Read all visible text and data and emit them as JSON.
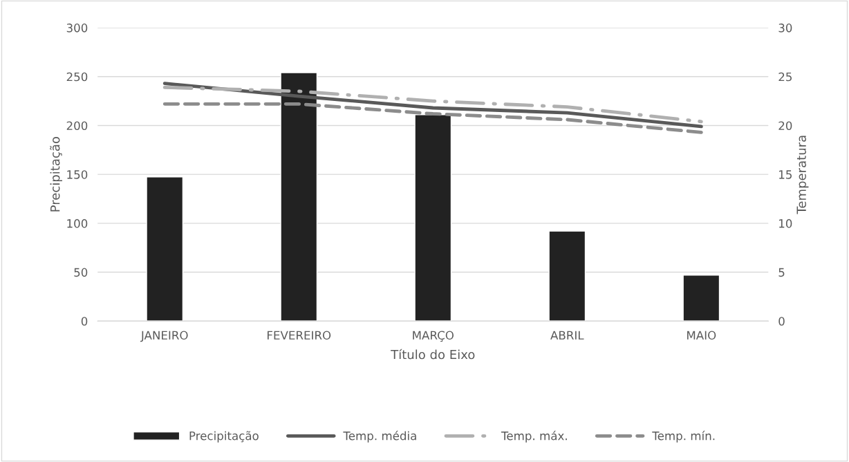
{
  "chart_data": {
    "type": "bar",
    "xlabel": "Título do Eixo",
    "ylabel": "Precipitação",
    "y2label": "Temperatura",
    "categories": [
      "JANEIRO",
      "FEVEREIRO",
      "MARÇO",
      "ABRIL",
      "MAIO"
    ],
    "series": [
      {
        "name": "Precipitação",
        "color": "#222222",
        "values": [
          147.5,
          254,
          211,
          92,
          47
        ]
      },
      {
        "name": "Temp. média",
        "type": "line",
        "axis": "y2",
        "color": "#595959",
        "line_style": "solid",
        "values": [
          24.3,
          23.0,
          21.8,
          21.3,
          19.9
        ]
      },
      {
        "name": "Temp. máx.",
        "type": "line",
        "axis": "y2",
        "color": "#b0b0b0",
        "line_style": "dashdot",
        "values": [
          23.9,
          23.5,
          22.5,
          21.9,
          20.4
        ]
      },
      {
        "name": "Temp. mín.",
        "type": "line",
        "axis": "y2",
        "color": "#8c8c8c",
        "line_style": "dashed",
        "values": [
          22.2,
          22.2,
          21.2,
          20.6,
          19.3
        ]
      }
    ],
    "ylim": [
      0,
      300
    ],
    "yticks": [
      0,
      50,
      100,
      150,
      200,
      250,
      300
    ],
    "y2lim": [
      0,
      30
    ],
    "y2ticks": [
      0,
      5,
      10,
      15,
      20,
      25,
      30
    ],
    "grid": "y",
    "legend": "bottom"
  }
}
